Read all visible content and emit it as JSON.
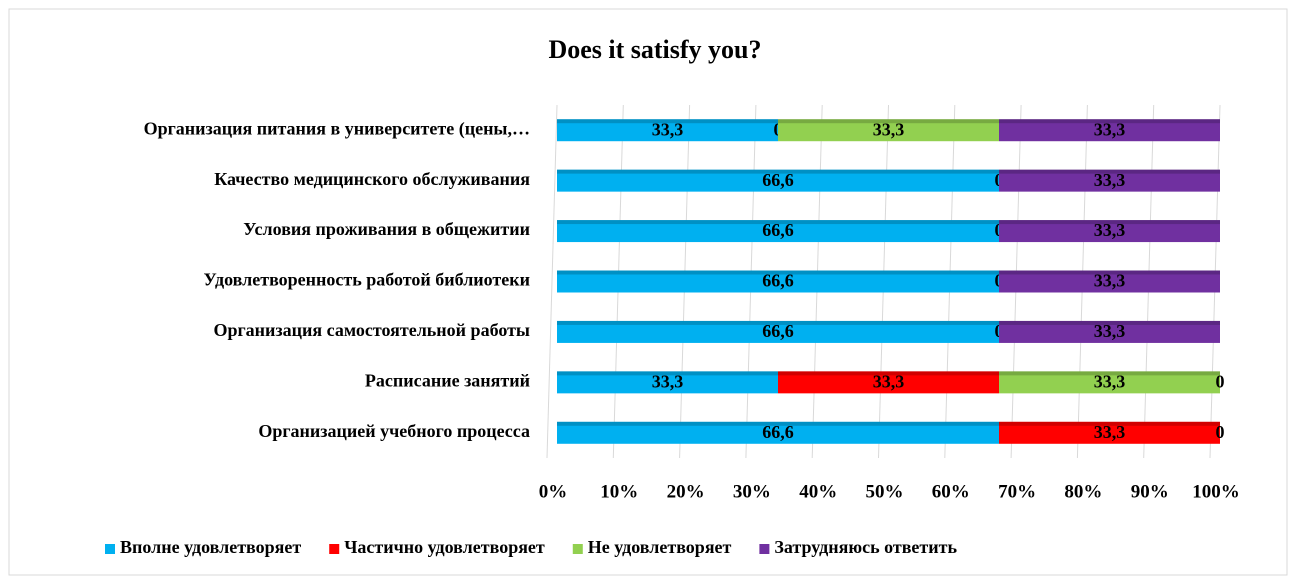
{
  "chart_data": {
    "type": "bar_stacked_percent_horizontal",
    "title": "Does it satisfy you?",
    "categories": [
      "Организация питания в университете (цены,…",
      "Качество медицинского обслуживания",
      "Условия проживания в общежитии",
      "Удовлетворенность работой библиотеки",
      "Организация самостоятельной работы",
      "Расписание занятий",
      "Организацией учебного процесса"
    ],
    "series": [
      {
        "name": "Вполне удовлетворяет",
        "color": "#00b0f0",
        "values": [
          33.3,
          66.6,
          66.6,
          66.6,
          66.6,
          33.3,
          66.6
        ],
        "value_labels": [
          "33,3",
          "66,6",
          "66,6",
          "66,6",
          "66,6",
          "33,3",
          "66,6"
        ]
      },
      {
        "name": "Частично удовлетворяет",
        "color": "#ff0000",
        "values": [
          0,
          0,
          0,
          0,
          0,
          33.3,
          33.3
        ],
        "value_labels": [
          "0",
          "0",
          "0",
          "0",
          "0",
          "33,3",
          "33,3"
        ]
      },
      {
        "name": "Не удовлетворяет",
        "color": "#92d050",
        "values": [
          33.3,
          null,
          null,
          null,
          null,
          33.3,
          null
        ],
        "value_labels": [
          "33,3",
          null,
          null,
          null,
          null,
          "33,3",
          null
        ]
      },
      {
        "name": "Затрудняюсь ответить",
        "color": "#7030a0",
        "values": [
          33.3,
          33.3,
          33.3,
          33.3,
          33.3,
          0,
          0
        ],
        "value_labels": [
          "33,3",
          "33,3",
          "33,3",
          "33,3",
          "33,3",
          "0",
          "0"
        ]
      }
    ],
    "xlim": [
      0,
      100
    ],
    "xticks": [
      {
        "value": 0,
        "label": "0%"
      },
      {
        "value": 10,
        "label": "10%"
      },
      {
        "value": 20,
        "label": "20%"
      },
      {
        "value": 30,
        "label": "30%"
      },
      {
        "value": 40,
        "label": "40%"
      },
      {
        "value": 50,
        "label": "50%"
      },
      {
        "value": 60,
        "label": "60%"
      },
      {
        "value": 70,
        "label": "70%"
      },
      {
        "value": 80,
        "label": "80%"
      },
      {
        "value": 90,
        "label": "90%"
      },
      {
        "value": 100,
        "label": "100%"
      }
    ],
    "grid": true,
    "legend": "bottom"
  }
}
